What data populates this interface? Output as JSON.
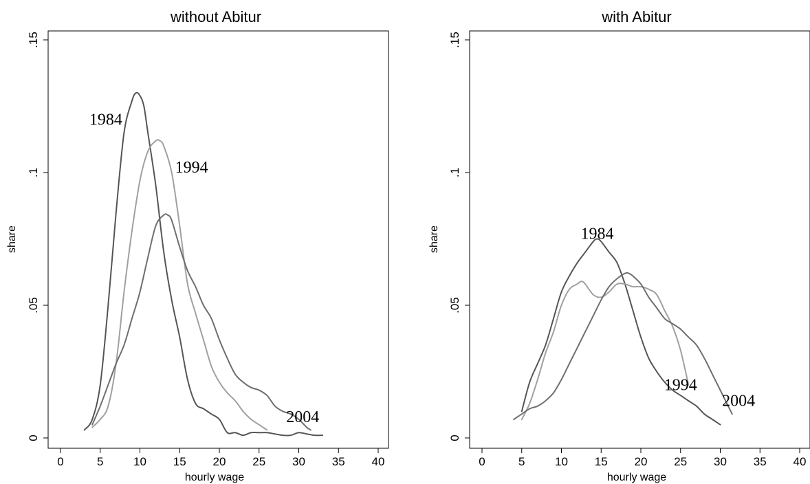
{
  "chart_data": [
    {
      "type": "line",
      "title": "without Abitur",
      "xlabel": "hourly wage",
      "ylabel": "share",
      "xlim": [
        0,
        40
      ],
      "ylim": [
        0,
        0.15
      ],
      "xticks": [
        0,
        5,
        10,
        15,
        20,
        25,
        30,
        35,
        40
      ],
      "xtick_labels": [
        "0",
        "5",
        "10",
        "15",
        "20",
        "25",
        "30",
        "35",
        "40"
      ],
      "yticks": [
        0,
        0.05,
        0.1,
        0.15
      ],
      "ytick_labels": [
        "0",
        ".05",
        ".1",
        ".15"
      ],
      "grid": false,
      "series": [
        {
          "name": "1984",
          "color": "#555555",
          "label": {
            "text": "1984",
            "x": 5.7,
            "y": 0.118
          },
          "x": [
            3,
            4,
            5,
            6,
            7,
            8,
            9,
            9.5,
            10,
            10.5,
            11,
            12,
            13,
            14,
            15,
            16,
            17,
            18,
            19,
            20,
            21,
            22,
            23,
            24,
            25,
            26,
            27,
            28,
            29,
            30,
            31,
            32,
            33
          ],
          "y": [
            0.003,
            0.007,
            0.02,
            0.05,
            0.085,
            0.115,
            0.127,
            0.13,
            0.129,
            0.125,
            0.115,
            0.095,
            0.07,
            0.052,
            0.038,
            0.022,
            0.013,
            0.011,
            0.009,
            0.007,
            0.002,
            0.002,
            0.001,
            0.002,
            0.002,
            0.002,
            0.0015,
            0.001,
            0.001,
            0.002,
            0.0015,
            0.001,
            0.001
          ]
        },
        {
          "name": "1994",
          "color": "#a0a0a0",
          "label": {
            "text": "1994",
            "x": 16.5,
            "y": 0.1
          },
          "x": [
            4,
            5,
            6,
            7,
            8,
            9,
            10,
            11,
            12,
            12.5,
            13,
            14,
            15,
            16,
            17,
            18,
            19,
            20,
            21,
            22,
            23,
            24,
            25,
            26
          ],
          "y": [
            0.004,
            0.007,
            0.012,
            0.028,
            0.055,
            0.078,
            0.097,
            0.108,
            0.112,
            0.112,
            0.11,
            0.1,
            0.08,
            0.058,
            0.047,
            0.037,
            0.027,
            0.021,
            0.017,
            0.014,
            0.01,
            0.007,
            0.005,
            0.003
          ]
        },
        {
          "name": "2004",
          "color": "#6e6e6e",
          "label": {
            "text": "2004",
            "x": 30.5,
            "y": 0.006
          },
          "x": [
            4,
            5,
            6,
            7,
            8,
            9,
            10,
            11,
            12,
            13,
            13.5,
            14,
            15,
            16,
            17,
            18,
            19,
            20,
            21,
            22,
            23,
            24,
            25,
            26,
            27,
            28,
            29,
            30,
            31,
            31.5
          ],
          "y": [
            0.005,
            0.012,
            0.02,
            0.028,
            0.035,
            0.045,
            0.055,
            0.068,
            0.08,
            0.084,
            0.084,
            0.082,
            0.072,
            0.063,
            0.057,
            0.05,
            0.045,
            0.037,
            0.03,
            0.024,
            0.021,
            0.019,
            0.018,
            0.016,
            0.012,
            0.01,
            0.009,
            0.007,
            0.004,
            0.003
          ]
        }
      ]
    },
    {
      "type": "line",
      "title": "with Abitur",
      "xlabel": "hourly wage",
      "ylabel": "share",
      "xlim": [
        0,
        40
      ],
      "ylim": [
        0,
        0.15
      ],
      "xticks": [
        0,
        5,
        10,
        15,
        20,
        25,
        30,
        35,
        40
      ],
      "xtick_labels": [
        "0",
        "5",
        "10",
        "15",
        "20",
        "25",
        "30",
        "35",
        "40"
      ],
      "yticks": [
        0,
        0.05,
        0.1,
        0.15
      ],
      "ytick_labels": [
        "0",
        ".05",
        ".1",
        ".15"
      ],
      "grid": false,
      "series": [
        {
          "name": "1984",
          "color": "#555555",
          "label": {
            "text": "1984",
            "x": 14.5,
            "y": 0.075
          },
          "x": [
            5,
            6,
            7,
            8,
            9,
            10,
            11,
            12,
            13,
            14,
            14.5,
            15,
            16,
            17,
            18,
            19,
            20,
            21,
            22,
            23,
            24,
            25,
            26,
            27,
            28,
            29,
            30
          ],
          "y": [
            0.01,
            0.021,
            0.028,
            0.035,
            0.045,
            0.055,
            0.061,
            0.066,
            0.07,
            0.074,
            0.075,
            0.074,
            0.07,
            0.066,
            0.058,
            0.048,
            0.038,
            0.03,
            0.025,
            0.021,
            0.018,
            0.016,
            0.014,
            0.012,
            0.009,
            0.007,
            0.005
          ]
        },
        {
          "name": "1994",
          "color": "#a0a0a0",
          "label": {
            "text": "1994",
            "x": 25,
            "y": 0.018
          },
          "x": [
            5,
            6,
            7,
            8,
            9,
            10,
            11,
            12,
            12.5,
            13,
            14,
            15,
            16,
            17,
            18,
            19,
            20,
            21,
            22,
            23,
            24,
            25,
            26
          ],
          "y": [
            0.007,
            0.013,
            0.022,
            0.032,
            0.04,
            0.05,
            0.056,
            0.058,
            0.059,
            0.058,
            0.054,
            0.053,
            0.055,
            0.058,
            0.058,
            0.057,
            0.057,
            0.056,
            0.054,
            0.048,
            0.042,
            0.033,
            0.02
          ]
        },
        {
          "name": "2004",
          "color": "#6e6e6e",
          "label": {
            "text": "2004",
            "x": 32.3,
            "y": 0.012
          },
          "x": [
            4,
            5,
            6,
            7,
            8,
            9,
            10,
            11,
            12,
            13,
            14,
            15,
            16,
            17,
            18,
            18.5,
            19,
            20,
            21,
            22,
            23,
            24,
            25,
            26,
            27,
            28,
            29,
            30,
            31,
            31.5
          ],
          "y": [
            0.007,
            0.009,
            0.011,
            0.012,
            0.014,
            0.017,
            0.022,
            0.028,
            0.034,
            0.04,
            0.046,
            0.052,
            0.057,
            0.06,
            0.062,
            0.062,
            0.061,
            0.058,
            0.053,
            0.049,
            0.045,
            0.043,
            0.041,
            0.038,
            0.035,
            0.03,
            0.024,
            0.018,
            0.012,
            0.009
          ]
        }
      ]
    }
  ]
}
